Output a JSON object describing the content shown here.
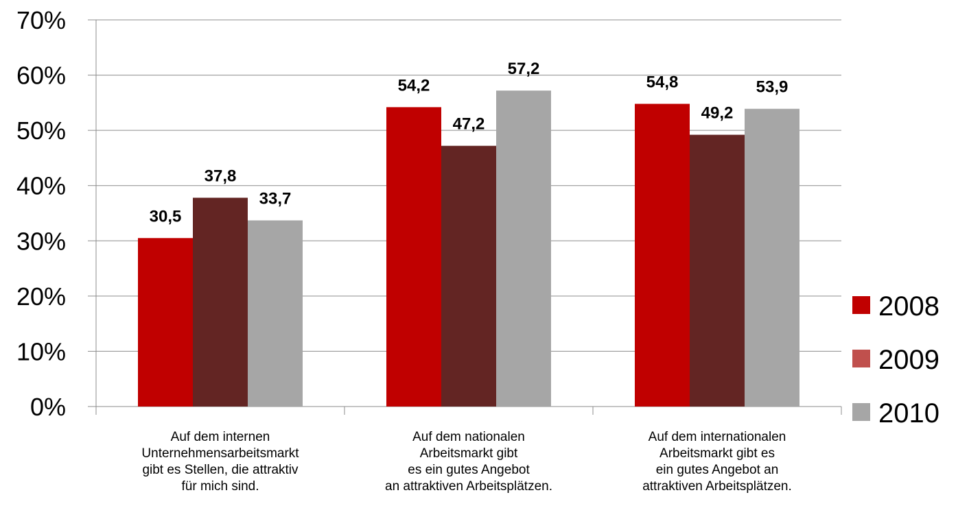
{
  "chart_data": {
    "type": "bar",
    "categories": [
      [
        "Auf dem internen",
        "Unternehmensarbeitsmarkt",
        "gibt es Stellen, die attraktiv",
        "für mich sind."
      ],
      [
        "Auf dem nationalen",
        "Arbeitsmarkt gibt",
        "es ein gutes Angebot",
        "an attraktiven Arbeitsplätzen."
      ],
      [
        "Auf dem internationalen",
        "Arbeitsmarkt gibt es",
        "ein gutes Angebot an",
        "attraktiven Arbeitsplätzen."
      ]
    ],
    "series": [
      {
        "name": "2008",
        "values": [
          30.5,
          54.2,
          54.8
        ],
        "labels": [
          "30,5",
          "54,2",
          "54,8"
        ],
        "color": "#c00000",
        "legend_color": "#c00000"
      },
      {
        "name": "2009",
        "values": [
          37.8,
          47.2,
          49.2
        ],
        "labels": [
          "37,8",
          "47,2",
          "49,2"
        ],
        "color": "#632523",
        "legend_color": "#c0504d"
      },
      {
        "name": "2010",
        "values": [
          33.7,
          57.2,
          53.9
        ],
        "labels": [
          "33,7",
          "57,2",
          "53,9"
        ],
        "color": "#a6a6a6",
        "legend_color": "#a6a6a6"
      }
    ],
    "y_ticks": [
      "0%",
      "10%",
      "20%",
      "30%",
      "40%",
      "50%",
      "60%",
      "70%"
    ],
    "ylim": [
      0,
      70
    ],
    "grid": true,
    "legend_position": "right",
    "title": "",
    "xlabel": "",
    "ylabel": ""
  }
}
